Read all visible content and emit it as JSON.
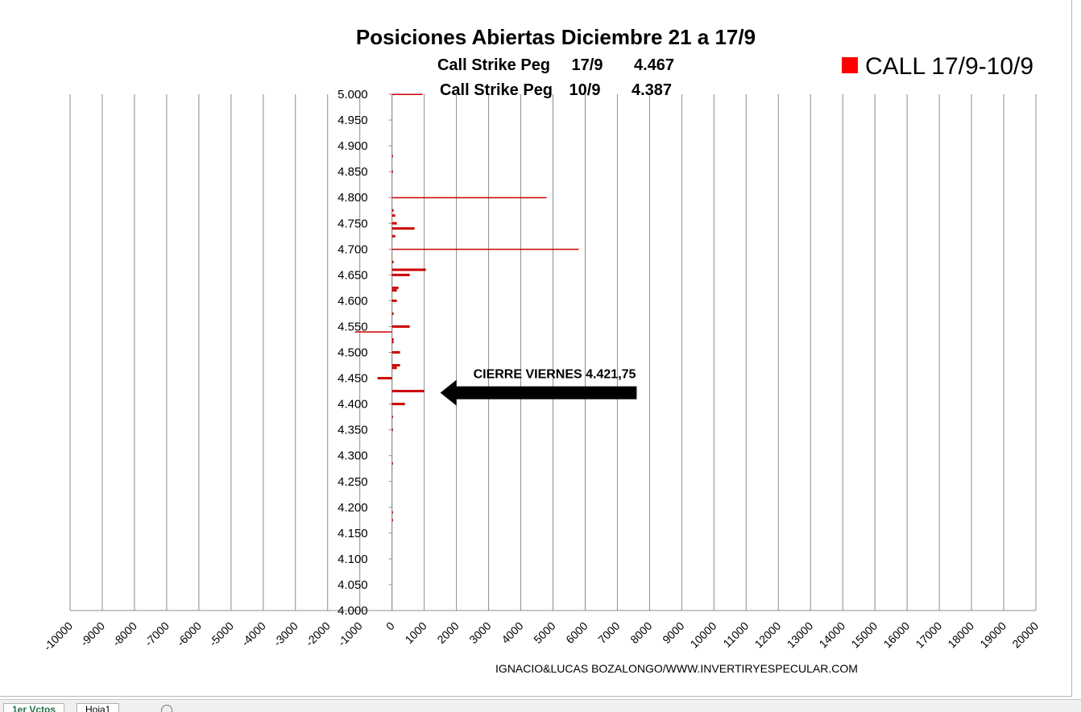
{
  "chart_data": {
    "type": "bar",
    "orientation": "horizontal",
    "title": "Posiciones Abiertas Diciembre 21 a 17/9",
    "subtitle_lines": [
      {
        "label": "Call Strike Peg",
        "date": "17/9",
        "value": "4.467"
      },
      {
        "label": "Call Strike Peg",
        "date": "10/9",
        "value": "4.387"
      }
    ],
    "legend": {
      "label": "CALL 17/9-10/9",
      "position": "top-right",
      "color": "#ff0000"
    },
    "xlim": [
      -10000,
      20000
    ],
    "x_ticks": [
      -10000,
      -9000,
      -8000,
      -7000,
      -6000,
      -5000,
      -4000,
      -3000,
      -2000,
      -1000,
      0,
      1000,
      2000,
      3000,
      4000,
      5000,
      6000,
      7000,
      8000,
      9000,
      10000,
      11000,
      12000,
      13000,
      14000,
      15000,
      16000,
      17000,
      18000,
      19000,
      20000
    ],
    "ylim": [
      4000,
      5000
    ],
    "y_ticks": [
      4000,
      4050,
      4100,
      4150,
      4200,
      4250,
      4300,
      4350,
      4400,
      4450,
      4500,
      4550,
      4600,
      4650,
      4700,
      4750,
      4800,
      4850,
      4900,
      4950,
      5000
    ],
    "y_tick_labels": [
      "4.000",
      "4.050",
      "4.100",
      "4.150",
      "4.200",
      "4.250",
      "4.300",
      "4.350",
      "4.400",
      "4.450",
      "4.500",
      "4.550",
      "4.600",
      "4.650",
      "4.700",
      "4.750",
      "4.800",
      "4.850",
      "4.900",
      "4.950",
      "5.000"
    ],
    "grid": {
      "vertical": true,
      "horizontal": false
    },
    "series": [
      {
        "name": "CALL 17/9-10/9",
        "color": "#cc0000",
        "points": [
          {
            "strike": 5000,
            "value": 950
          },
          {
            "strike": 4880,
            "value": 30
          },
          {
            "strike": 4850,
            "value": 30
          },
          {
            "strike": 4800,
            "value": 4800
          },
          {
            "strike": 4775,
            "value": 50
          },
          {
            "strike": 4765,
            "value": 100
          },
          {
            "strike": 4750,
            "value": 150
          },
          {
            "strike": 4740,
            "value": 700
          },
          {
            "strike": 4725,
            "value": 100
          },
          {
            "strike": 4700,
            "value": 5800
          },
          {
            "strike": 4675,
            "value": 50
          },
          {
            "strike": 4660,
            "value": 1050
          },
          {
            "strike": 4650,
            "value": 550
          },
          {
            "strike": 4625,
            "value": 200
          },
          {
            "strike": 4620,
            "value": 150
          },
          {
            "strike": 4600,
            "value": 150
          },
          {
            "strike": 4575,
            "value": 50
          },
          {
            "strike": 4550,
            "value": 550
          },
          {
            "strike": 4540,
            "value": -1150
          },
          {
            "strike": 4525,
            "value": 50
          },
          {
            "strike": 4520,
            "value": 50
          },
          {
            "strike": 4500,
            "value": 250
          },
          {
            "strike": 4475,
            "value": 250
          },
          {
            "strike": 4470,
            "value": 150
          },
          {
            "strike": 4450,
            "value": -450
          },
          {
            "strike": 4425,
            "value": 1000
          },
          {
            "strike": 4400,
            "value": 400
          },
          {
            "strike": 4375,
            "value": 30
          },
          {
            "strike": 4350,
            "value": 30
          },
          {
            "strike": 4285,
            "value": 30
          },
          {
            "strike": 4190,
            "value": 30
          },
          {
            "strike": 4175,
            "value": 30
          }
        ]
      }
    ],
    "annotations": [
      {
        "text": "CIERRE VIERNES 4.421,75",
        "arrow_strike": 4421.75,
        "arrow_from_x": 7600,
        "arrow_to_x": 1500
      }
    ],
    "footer": "IGNACIO&LUCAS BOZALONGO/WWW.INVERTIRYESPECULAR.COM"
  },
  "sheet_tabs": {
    "active": "1er Vctos",
    "other": "Hoja1"
  }
}
